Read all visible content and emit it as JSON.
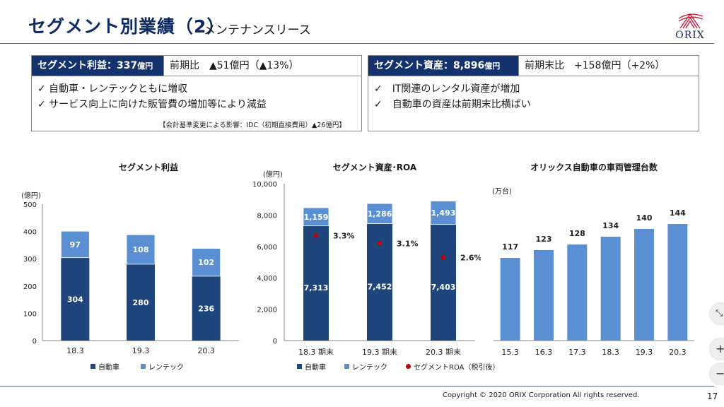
{
  "header": {
    "title": "セグメント別業績（2）",
    "subtitle": "メンテナンスリース",
    "logo_text": "ORIX"
  },
  "left_panel": {
    "head_label": "セグメント利益：337",
    "head_unit": "億円",
    "compare": "前期比　▲51億円（▲13%）",
    "bullets": [
      "✓ 自動車・レンテックともに増収",
      "✓ サービス向上に向けた販管費の増加等により減益"
    ],
    "note": "【会計基準変更による影響：IDC（初期直接費用）▲26億円】"
  },
  "right_panel": {
    "head_label": "セグメント資産：8,896",
    "head_unit": "億円",
    "compare": "前期末比　+158億円（+2%）",
    "bullets": [
      "✓　IT関連のレンタル資産が増加",
      "✓　自動車の資産は前期末比横ばい"
    ]
  },
  "colors": {
    "dark": "#1f467c",
    "light": "#5b8fd3",
    "roa": "#c00000",
    "navy": "#14336e"
  },
  "chart_data": [
    {
      "type": "bar",
      "title": "セグメント利益",
      "unit": "(億円)",
      "categories": [
        "18.3",
        "19.3",
        "20.3"
      ],
      "series": [
        {
          "name": "自動車",
          "values": [
            304,
            280,
            236
          ]
        },
        {
          "name": "レンテック",
          "values": [
            97,
            108,
            102
          ]
        }
      ],
      "stacked": true,
      "ylim": [
        0,
        500
      ],
      "yticks": [
        "0",
        "100",
        "200",
        "300",
        "400",
        "500"
      ],
      "yticks_values": [
        0,
        100,
        200,
        300,
        400,
        500
      ],
      "legend": "bottom"
    },
    {
      "type": "bar",
      "title": "セグメント資産･ROA",
      "unit": "(億円)",
      "categories": [
        "18.3 期末",
        "19.3 期末",
        "20.3 期末"
      ],
      "series": [
        {
          "name": "自動車",
          "values": [
            7313,
            7452,
            7403
          ],
          "labels": [
            "7,313",
            "7,452",
            "7,403"
          ]
        },
        {
          "name": "レンテック",
          "values": [
            1159,
            1286,
            1493
          ],
          "labels": [
            "1,159",
            "1,286",
            "1,493"
          ]
        }
      ],
      "roa": {
        "name": "セグメントROA（税引後）",
        "values": [
          3.3,
          3.1,
          2.6
        ],
        "labels": [
          "3.3%",
          "3.1%",
          "2.6%"
        ]
      },
      "stacked": true,
      "ylim": [
        0,
        10000
      ],
      "yticks": [
        "0",
        "2,000",
        "4,000",
        "6,000",
        "8,000",
        "10,000"
      ],
      "yticks_values": [
        0,
        2000,
        4000,
        6000,
        8000,
        10000
      ],
      "legend": "bottom"
    },
    {
      "type": "bar",
      "title": "オリックス自動車の車両管理台数",
      "unit": "(万台)",
      "categories": [
        "15.3",
        "16.3",
        "17.3",
        "18.3",
        "19.3",
        "20.3"
      ],
      "values": [
        117,
        123,
        128,
        134,
        140,
        144
      ],
      "axis_min_display": 0
    }
  ],
  "footer": {
    "copyright": "Copyright © 2020 ORIX Corporation  All rights reserved.",
    "page": "17"
  },
  "controls": {
    "collapse_icon": "⤡",
    "zoom_in": "+",
    "zoom_out": "−"
  }
}
